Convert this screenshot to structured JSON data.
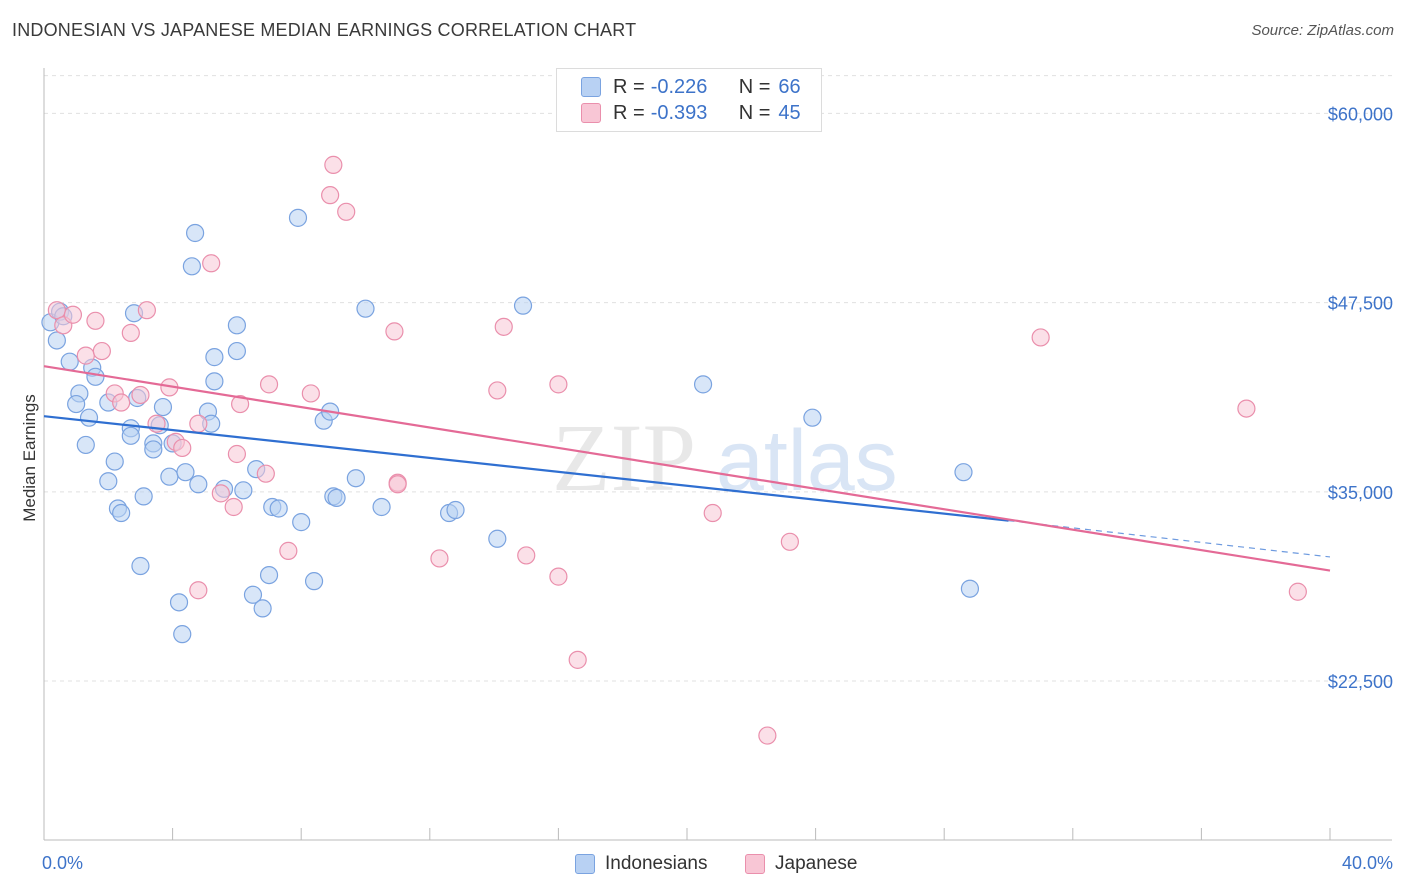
{
  "title": "INDONESIAN VS JAPANESE MEDIAN EARNINGS CORRELATION CHART",
  "source": "Source: ZipAtlas.com",
  "watermark": {
    "zip": "ZIP",
    "atlas": "atlas"
  },
  "legend": {
    "r_label": "R =",
    "n_label": "N =",
    "rows": [
      {
        "r": "-0.226",
        "n": "66"
      },
      {
        "r": "-0.393",
        "n": "45"
      }
    ]
  },
  "colors": {
    "indonesians_fill": "#b8d1f3",
    "indonesians_stroke": "#7aa3e0",
    "indonesians_line": "#2f6fd1",
    "japanese_fill": "#f8c6d5",
    "japanese_stroke": "#ea8fac",
    "japanese_line": "#e46a96",
    "axis_text": "#3d73c9",
    "grid": "#e0e0e0"
  },
  "chart_data": {
    "type": "scatter",
    "title": "INDONESIAN VS JAPANESE MEDIAN EARNINGS CORRELATION CHART",
    "xlabel": "",
    "ylabel": "Median Earnings",
    "xlim": [
      0,
      40
    ],
    "ylim": [
      12000,
      63000
    ],
    "x_tick_labels": [
      "0.0%",
      "40.0%"
    ],
    "y_ticks": [
      22500,
      35000,
      47500,
      60000
    ],
    "y_tick_labels": [
      "$22,500",
      "$35,000",
      "$47,500",
      "$60,000"
    ],
    "grid": true,
    "legend_position": "top-center",
    "series": [
      {
        "name": "Indonesians",
        "r": -0.226,
        "n": 66,
        "trend": {
          "x": [
            0,
            30
          ],
          "y": [
            40000,
            33100
          ],
          "dashed_to": [
            40,
            30700
          ]
        },
        "points": [
          [
            0.2,
            46200
          ],
          [
            0.5,
            46900
          ],
          [
            0.6,
            46600
          ],
          [
            0.4,
            45000
          ],
          [
            0.8,
            43600
          ],
          [
            1.5,
            43200
          ],
          [
            1.6,
            42600
          ],
          [
            1.1,
            41500
          ],
          [
            1.0,
            40800
          ],
          [
            2.0,
            40900
          ],
          [
            1.4,
            39900
          ],
          [
            2.7,
            39200
          ],
          [
            3.7,
            40600
          ],
          [
            3.6,
            39400
          ],
          [
            2.7,
            38700
          ],
          [
            1.3,
            38100
          ],
          [
            3.4,
            38200
          ],
          [
            3.4,
            37800
          ],
          [
            4.0,
            38200
          ],
          [
            2.2,
            37000
          ],
          [
            2.0,
            35700
          ],
          [
            3.9,
            36000
          ],
          [
            4.4,
            36300
          ],
          [
            4.8,
            35500
          ],
          [
            5.6,
            35200
          ],
          [
            6.2,
            35100
          ],
          [
            6.6,
            36500
          ],
          [
            3.1,
            34700
          ],
          [
            2.3,
            33900
          ],
          [
            2.4,
            33600
          ],
          [
            7.1,
            34000
          ],
          [
            7.3,
            33900
          ],
          [
            8.0,
            33000
          ],
          [
            9.0,
            34700
          ],
          [
            9.1,
            34600
          ],
          [
            9.7,
            35900
          ],
          [
            10.5,
            34000
          ],
          [
            12.6,
            33600
          ],
          [
            12.8,
            33800
          ],
          [
            14.1,
            31900
          ],
          [
            14.9,
            47300
          ],
          [
            6.0,
            46000
          ],
          [
            4.7,
            52100
          ],
          [
            4.6,
            49900
          ],
          [
            7.9,
            53100
          ],
          [
            10.0,
            47100
          ],
          [
            5.3,
            43900
          ],
          [
            6.0,
            44300
          ],
          [
            5.3,
            42300
          ],
          [
            5.1,
            40300
          ],
          [
            5.2,
            39500
          ],
          [
            8.7,
            39700
          ],
          [
            8.9,
            40300
          ],
          [
            2.8,
            46800
          ],
          [
            2.9,
            41200
          ],
          [
            3.0,
            30100
          ],
          [
            4.2,
            27700
          ],
          [
            4.3,
            25600
          ],
          [
            6.5,
            28200
          ],
          [
            6.8,
            27300
          ],
          [
            7.0,
            29500
          ],
          [
            8.4,
            29100
          ],
          [
            20.5,
            42100
          ],
          [
            23.9,
            39900
          ],
          [
            28.6,
            36300
          ],
          [
            28.8,
            28600
          ]
        ]
      },
      {
        "name": "Japanese",
        "r": -0.393,
        "n": 45,
        "trend": {
          "x": [
            0,
            40
          ],
          "y": [
            43300,
            29800
          ]
        },
        "points": [
          [
            0.4,
            47000
          ],
          [
            0.6,
            46000
          ],
          [
            0.9,
            46700
          ],
          [
            1.6,
            46300
          ],
          [
            2.7,
            45500
          ],
          [
            3.2,
            47000
          ],
          [
            1.3,
            44000
          ],
          [
            1.8,
            44300
          ],
          [
            2.2,
            41500
          ],
          [
            3.0,
            41400
          ],
          [
            2.4,
            40900
          ],
          [
            3.9,
            41900
          ],
          [
            3.5,
            39500
          ],
          [
            4.1,
            38300
          ],
          [
            4.3,
            37900
          ],
          [
            4.8,
            39500
          ],
          [
            6.1,
            40800
          ],
          [
            5.5,
            34900
          ],
          [
            5.9,
            34000
          ],
          [
            6.0,
            37500
          ],
          [
            6.9,
            36200
          ],
          [
            7.0,
            42100
          ],
          [
            8.3,
            41500
          ],
          [
            7.6,
            31100
          ],
          [
            5.2,
            50100
          ],
          [
            8.9,
            54600
          ],
          [
            9.0,
            56600
          ],
          [
            9.4,
            53500
          ],
          [
            10.9,
            45600
          ],
          [
            11.0,
            35600
          ],
          [
            12.3,
            30600
          ],
          [
            14.1,
            41700
          ],
          [
            14.3,
            45900
          ],
          [
            15.0,
            30800
          ],
          [
            16.0,
            42100
          ],
          [
            16.0,
            29400
          ],
          [
            16.6,
            23900
          ],
          [
            20.8,
            33600
          ],
          [
            22.5,
            18900
          ],
          [
            23.2,
            31700
          ],
          [
            31.0,
            45200
          ],
          [
            37.4,
            40500
          ],
          [
            39.0,
            28400
          ],
          [
            4.8,
            28500
          ],
          [
            11.0,
            35500
          ]
        ]
      }
    ]
  }
}
